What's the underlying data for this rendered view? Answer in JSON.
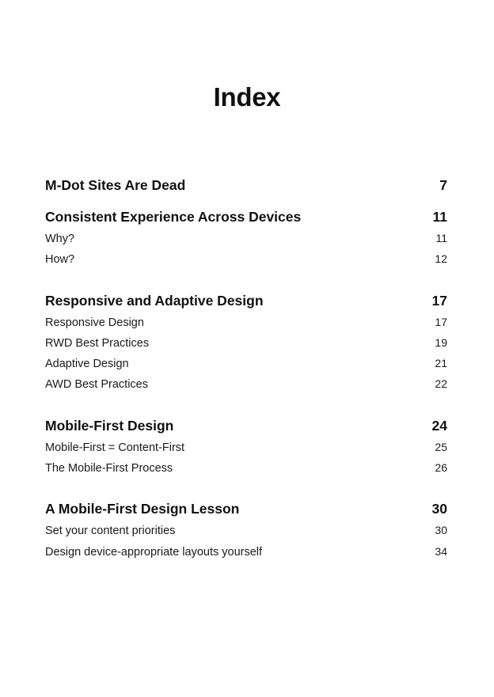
{
  "title": "Index",
  "sections": [
    {
      "title": "M-Dot Sites Are Dead",
      "page": "7",
      "items": []
    },
    {
      "title": "Consistent Experience Across Devices",
      "page": "11",
      "items": [
        {
          "title": "Why?",
          "page": "11"
        },
        {
          "title": "How?",
          "page": "12"
        }
      ]
    },
    {
      "title": "Responsive and Adaptive Design",
      "page": "17",
      "items": [
        {
          "title": "Responsive Design",
          "page": "17"
        },
        {
          "title": "RWD Best Practices",
          "page": "19"
        },
        {
          "title": "Adaptive Design",
          "page": "21"
        },
        {
          "title": "AWD Best Practices",
          "page": "22"
        }
      ]
    },
    {
      "title": "Mobile-First Design",
      "page": "24",
      "items": [
        {
          "title": "Mobile-First = Content-First",
          "page": "25"
        },
        {
          "title": "The Mobile-First Process",
          "page": "26"
        }
      ]
    },
    {
      "title": "A Mobile-First Design Lesson",
      "page": "30",
      "items": [
        {
          "title": "Set your content priorities",
          "page": "30"
        },
        {
          "title": "Design device-appropriate layouts yourself",
          "page": "34"
        }
      ]
    }
  ]
}
